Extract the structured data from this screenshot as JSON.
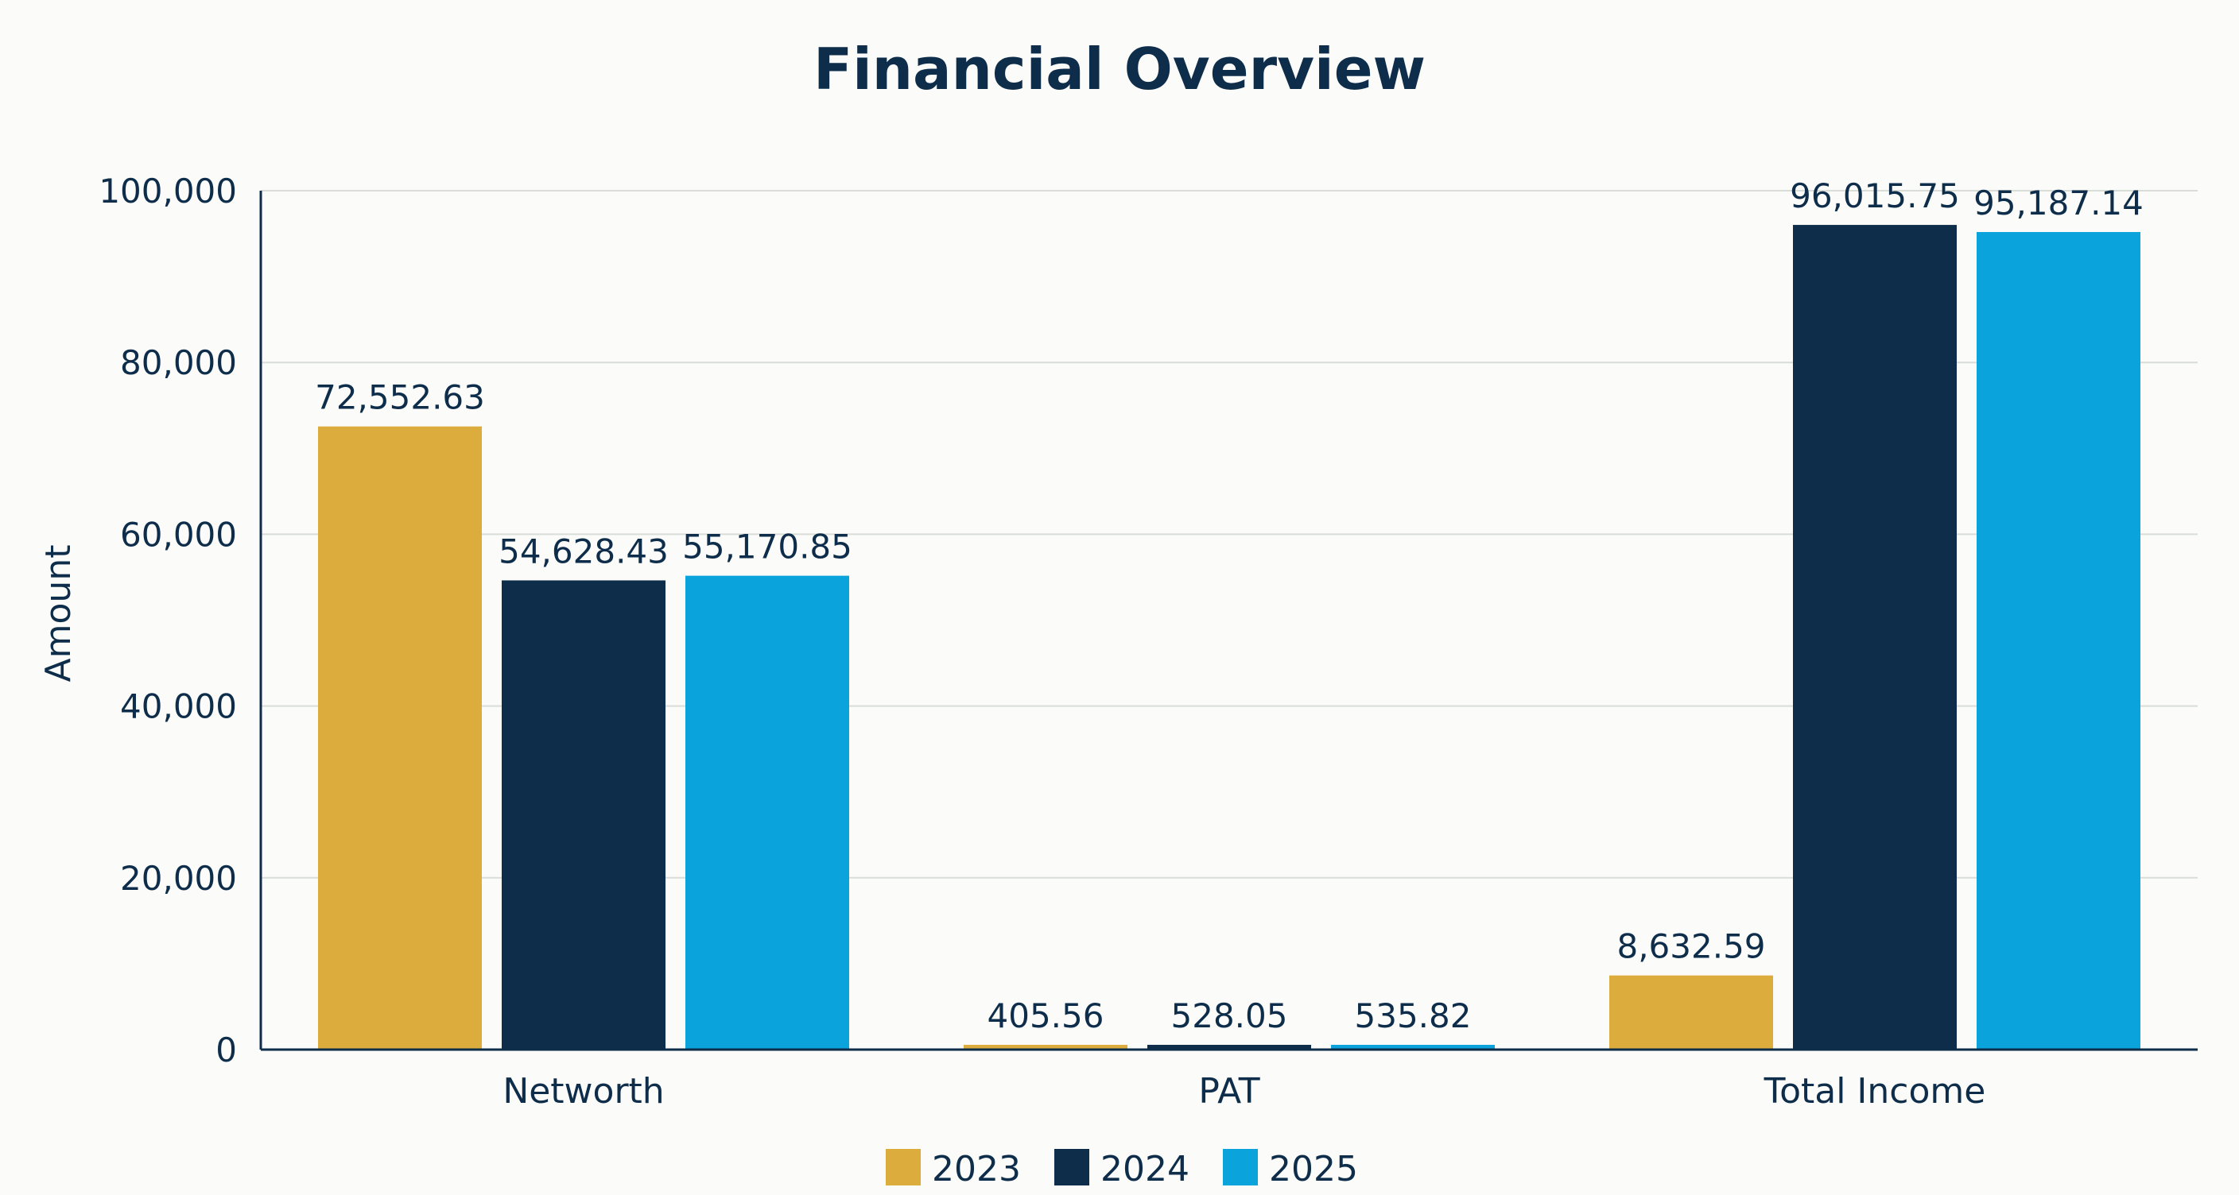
{
  "chart_data": {
    "type": "bar",
    "title": "Financial Overview",
    "xlabel": "",
    "ylabel": "Amount",
    "ylim": [
      0,
      100000
    ],
    "yticks": [
      0,
      20000,
      40000,
      60000,
      80000,
      100000
    ],
    "ytick_labels": [
      "0",
      "20,000",
      "40,000",
      "60,000",
      "80,000",
      "100,000"
    ],
    "grid": true,
    "legend": "bottom",
    "categories": [
      "Networth",
      "PAT",
      "Total Income"
    ],
    "series": [
      {
        "name": "2023",
        "color": "#dcad3c",
        "values": [
          72552.63,
          405.56,
          8632.59
        ],
        "labels": [
          "72,552.63",
          "405.56",
          "8,632.59"
        ]
      },
      {
        "name": "2024",
        "color": "#0e2d4a",
        "values": [
          54628.43,
          528.05,
          96015.75
        ],
        "labels": [
          "54,628.43",
          "528.05",
          "96,015.75"
        ]
      },
      {
        "name": "2025",
        "color": "#0ba3dc",
        "values": [
          55170.85,
          535.82,
          95187.14
        ],
        "labels": [
          "55,170.85",
          "535.82",
          "95,187.14"
        ]
      }
    ]
  }
}
